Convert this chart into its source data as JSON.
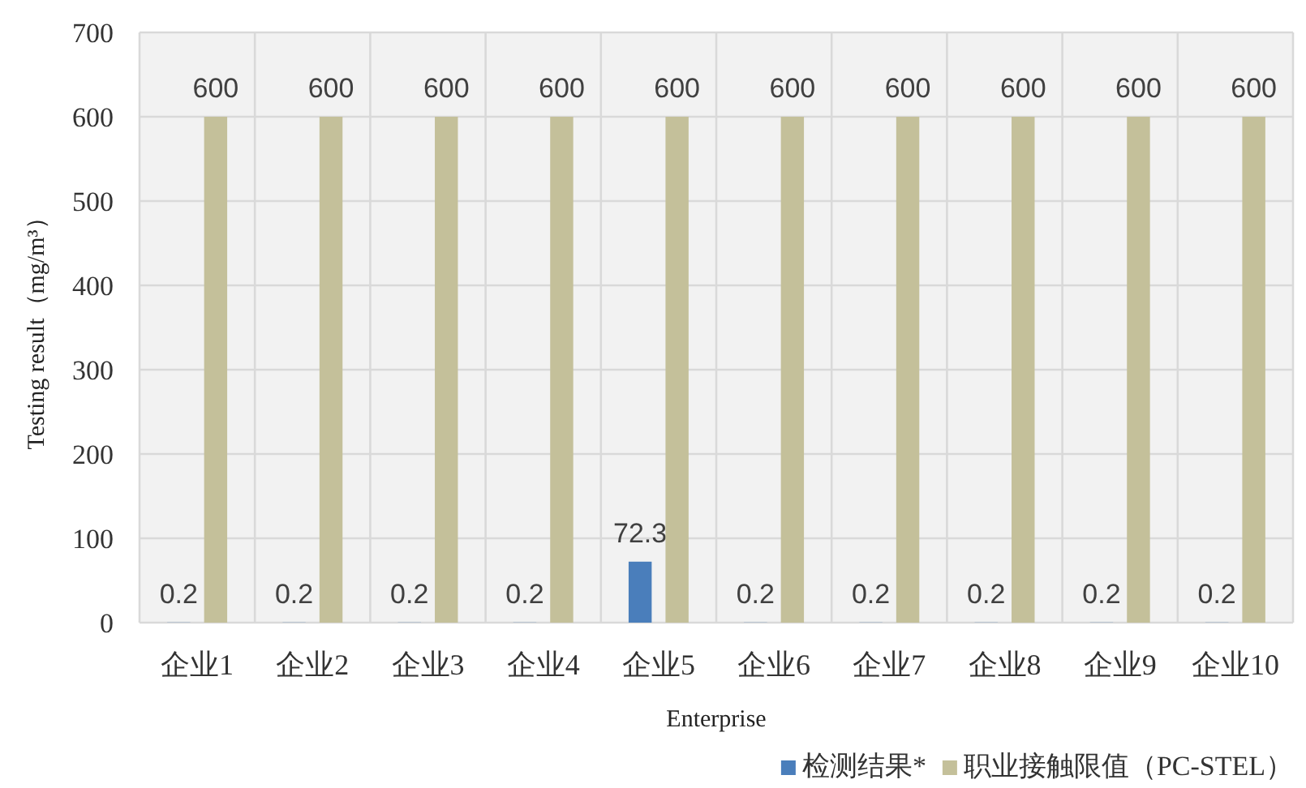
{
  "chart_data": {
    "type": "bar",
    "xlabel": "Enterprise",
    "ylabel": "Testing result（mg/m³）",
    "categories": [
      "企业1",
      "企业2",
      "企业3",
      "企业4",
      "企业5",
      "企业6",
      "企业7",
      "企业8",
      "企业9",
      "企业10"
    ],
    "series": [
      {
        "name": "检测结果*",
        "color": "#4a7ebb",
        "values": [
          0.2,
          0.2,
          0.2,
          0.2,
          72.3,
          0.2,
          0.2,
          0.2,
          0.2,
          0.2
        ]
      },
      {
        "name": "职业接触限值（PC-STEL）",
        "color": "#c4c09a",
        "values": [
          600,
          600,
          600,
          600,
          600,
          600,
          600,
          600,
          600,
          600
        ]
      }
    ],
    "ylim": [
      0,
      700
    ],
    "yticks": [
      0,
      100,
      200,
      300,
      400,
      500,
      600,
      700
    ],
    "grid": true,
    "legend": "bottom right",
    "data_labels": true
  }
}
